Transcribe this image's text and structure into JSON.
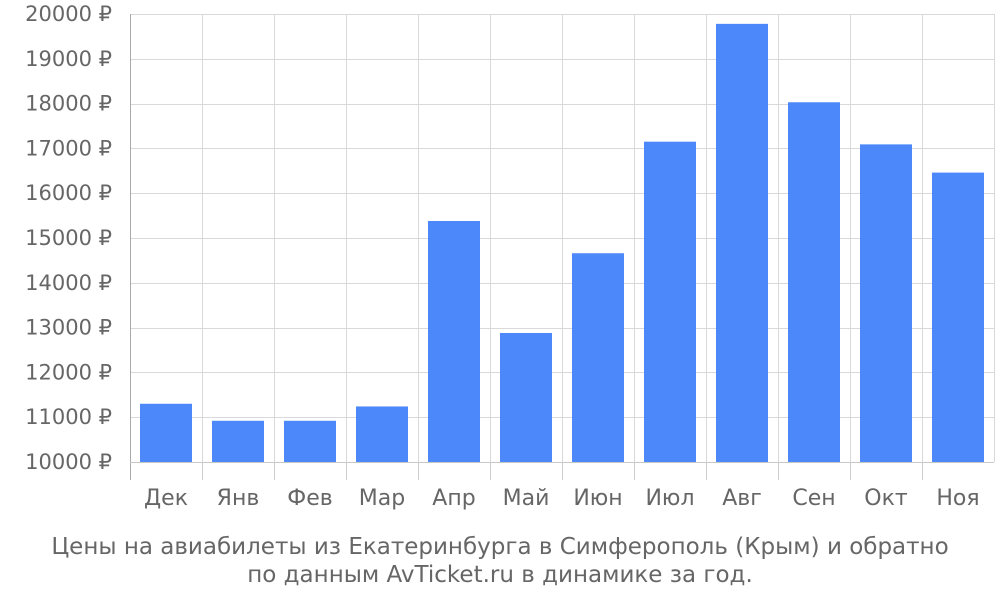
{
  "chart_data": {
    "type": "bar",
    "categories": [
      "Дек",
      "Янв",
      "Фев",
      "Мар",
      "Апр",
      "Май",
      "Июн",
      "Июл",
      "Авг",
      "Сен",
      "Окт",
      "Ноя"
    ],
    "values": [
      11300,
      10920,
      10920,
      11240,
      15380,
      12880,
      14660,
      17150,
      19780,
      18030,
      17090,
      16460
    ],
    "ylim": [
      10000,
      20000
    ],
    "yticks": [
      10000,
      11000,
      12000,
      13000,
      14000,
      15000,
      16000,
      17000,
      18000,
      19000,
      20000
    ],
    "y_tick_labels": [
      "10000 ₽",
      "11000 ₽",
      "12000 ₽",
      "13000 ₽",
      "14000 ₽",
      "15000 ₽",
      "16000 ₽",
      "17000 ₽",
      "18000 ₽",
      "19000 ₽",
      "20000 ₽"
    ],
    "grid": true,
    "bar_color": "#4d88fb",
    "caption_line_1": "Цены на авиабилеты из Екатеринбурга в Симферополь (Крым) и обратно",
    "caption_line_2": "по данным AvTicket.ru в динамике за год."
  }
}
